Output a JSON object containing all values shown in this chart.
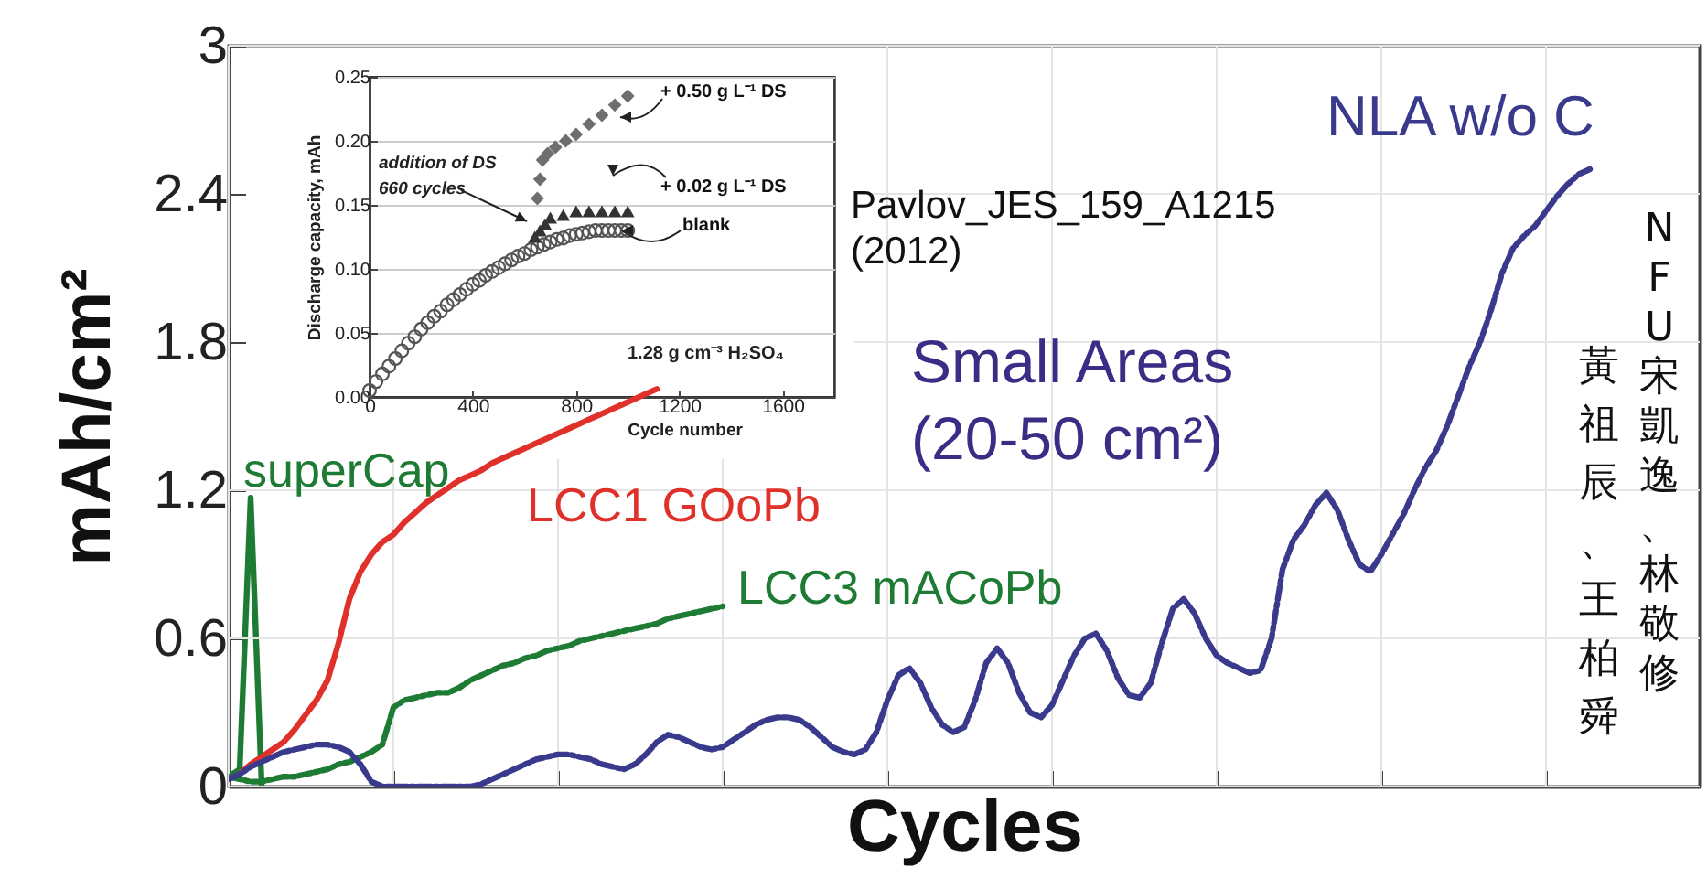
{
  "chart_data": [
    {
      "type": "line",
      "xlabel": "Cycles",
      "ylabel": "mAh/cm²",
      "grid": true,
      "categories": [
        null,
        null,
        null,
        null,
        null,
        null,
        null,
        null,
        null,
        null,
        null,
        null,
        null,
        null,
        null,
        null,
        null,
        null,
        null,
        null,
        null,
        null,
        null,
        null,
        null,
        null,
        null,
        null,
        null,
        null,
        null,
        null,
        null,
        null,
        null,
        null,
        null,
        null,
        null,
        null,
        null,
        null,
        null,
        null,
        null,
        null,
        null,
        null,
        null,
        null,
        null,
        null,
        null,
        null,
        null,
        null,
        null,
        null,
        null,
        null,
        null,
        null,
        null,
        null,
        null,
        null,
        null,
        null,
        null,
        null,
        null,
        null,
        null,
        null,
        null,
        null,
        null,
        null,
        null,
        null,
        null,
        null,
        null,
        null,
        null,
        null,
        null,
        null,
        null,
        null,
        null,
        null,
        null,
        null,
        null,
        null,
        null,
        null,
        null,
        null,
        null,
        null,
        null,
        null,
        null,
        null,
        null,
        null,
        null,
        null,
        null,
        null,
        null,
        null,
        null,
        null,
        null,
        null,
        null,
        null,
        null,
        null,
        null,
        null,
        null,
        null,
        null,
        null,
        null,
        null,
        null,
        null,
        null,
        null,
        null
      ],
      "ylim": [
        0,
        3
      ],
      "yticks": [
        0,
        0.6,
        1.2,
        1.8,
        2.4,
        3
      ],
      "tick_labels": "y",
      "annotations": [
        "Pavlov_JES_159_A1215\n(2012)",
        "Small Areas\n(20-50 cm²)",
        "NFU 宋凱逸、林敬修",
        "黃祖辰、王柏舜"
      ],
      "series": [
        {
          "name": "superCap",
          "color": "#1e7b34",
          "line_style": "solid",
          "values": [
            0.04,
            0.07,
            1.17,
            0.01,
            null,
            null,
            null,
            null,
            null,
            null,
            null,
            null,
            null,
            null,
            null,
            null,
            null,
            null,
            null,
            null,
            null,
            null,
            null,
            null,
            null,
            null,
            null,
            null,
            null,
            null,
            null,
            null,
            null,
            null,
            null,
            null,
            null,
            null,
            null,
            null,
            null,
            null,
            null,
            null,
            null,
            null,
            null,
            null,
            null,
            null,
            null,
            null,
            null,
            null,
            null,
            null,
            null,
            null,
            null,
            null,
            null,
            null,
            null,
            null,
            null,
            null,
            null,
            null,
            null,
            null,
            null,
            null,
            null,
            null,
            null,
            null,
            null,
            null,
            null,
            null,
            null,
            null,
            null,
            null,
            null,
            null,
            null,
            null,
            null,
            null,
            null,
            null,
            null,
            null,
            null,
            null,
            null,
            null,
            null,
            null,
            null,
            null,
            null,
            null,
            null,
            null,
            null,
            null,
            null,
            null,
            null,
            null,
            null,
            null,
            null,
            null,
            null,
            null,
            null,
            null,
            null,
            null,
            null,
            null,
            null,
            null,
            null,
            null,
            null,
            null,
            null,
            null,
            null,
            null,
            null
          ]
        },
        {
          "name": "LCC1 GOoPb",
          "color": "#e0302a",
          "line_style": "solid",
          "values": [
            0.03,
            0.05,
            0.09,
            0.12,
            0.15,
            0.18,
            0.23,
            0.29,
            0.35,
            0.43,
            0.58,
            0.76,
            0.87,
            0.94,
            0.99,
            1.02,
            1.07,
            1.11,
            1.15,
            1.18,
            1.21,
            1.24,
            1.26,
            1.28,
            1.31,
            1.33,
            1.35,
            1.37,
            1.39,
            1.41,
            1.43,
            1.45,
            1.47,
            1.49,
            1.51,
            1.53,
            1.55,
            1.57,
            1.59,
            1.61,
            null,
            null,
            null,
            null,
            null,
            null,
            null,
            null,
            null,
            null,
            null,
            null,
            null,
            null,
            null,
            null,
            null,
            null,
            null,
            null,
            null,
            null,
            null,
            null,
            null,
            null,
            null,
            null,
            null,
            null,
            null,
            null,
            null,
            null,
            null,
            null,
            null,
            null,
            null,
            null,
            null,
            null,
            null,
            null,
            null,
            null,
            null,
            null,
            null,
            null,
            null,
            null,
            null,
            null,
            null,
            null,
            null,
            null,
            null,
            null,
            null,
            null,
            null,
            null,
            null,
            null,
            null,
            null,
            null,
            null,
            null,
            null,
            null,
            null,
            null,
            null,
            null,
            null,
            null,
            null,
            null,
            null,
            null,
            null,
            null,
            null,
            null,
            null,
            null,
            null,
            null,
            null,
            null,
            null,
            null
          ]
        },
        {
          "name": "LCC3 mACoPb",
          "color": "#1e7b34",
          "line_style": "dashed",
          "values": [
            0.04,
            0.03,
            0.02,
            0.02,
            0.03,
            0.04,
            0.04,
            0.05,
            0.06,
            0.07,
            0.09,
            0.1,
            0.12,
            0.14,
            0.17,
            0.32,
            0.35,
            0.36,
            0.37,
            0.38,
            0.38,
            0.4,
            0.43,
            0.45,
            0.47,
            0.49,
            0.5,
            0.52,
            0.53,
            0.55,
            0.56,
            0.57,
            0.59,
            0.6,
            0.61,
            0.62,
            0.63,
            0.64,
            0.65,
            0.66,
            0.68,
            0.69,
            0.7,
            0.71,
            0.72,
            0.73,
            null,
            null,
            null,
            null,
            null,
            null,
            null,
            null,
            null,
            null,
            null,
            null,
            null,
            null,
            null,
            null,
            null,
            null,
            null,
            null,
            null,
            null,
            null,
            null,
            null,
            null,
            null,
            null,
            null,
            null,
            null,
            null,
            null,
            null,
            null,
            null,
            null,
            null,
            null,
            null,
            null,
            null,
            null,
            null,
            null,
            null,
            null,
            null,
            null,
            null,
            null,
            null,
            null,
            null,
            null,
            null,
            null,
            null,
            null,
            null,
            null,
            null,
            null,
            null,
            null,
            null,
            null,
            null,
            null,
            null,
            null,
            null,
            null,
            null,
            null,
            null,
            null,
            null,
            null,
            null,
            null,
            null,
            null,
            null,
            null,
            null,
            null,
            null,
            null
          ]
        },
        {
          "name": "NLA w/o C",
          "color": "#3a3a8c",
          "line_style": "dashed",
          "values": [
            0.03,
            0.05,
            0.08,
            0.1,
            0.12,
            0.14,
            0.15,
            0.16,
            0.17,
            0.17,
            0.16,
            0.14,
            0.09,
            0.02,
            0,
            0,
            0,
            0,
            0,
            0,
            0,
            0,
            0,
            0.01,
            0.03,
            0.05,
            0.07,
            0.09,
            0.11,
            0.12,
            0.13,
            0.13,
            0.12,
            0.11,
            0.09,
            0.08,
            0.07,
            0.09,
            0.13,
            0.18,
            0.21,
            0.2,
            0.18,
            0.16,
            0.15,
            0.16,
            0.19,
            0.22,
            0.25,
            0.27,
            0.28,
            0.28,
            0.27,
            0.24,
            0.2,
            0.16,
            0.14,
            0.13,
            0.15,
            0.22,
            0.35,
            0.45,
            0.48,
            0.42,
            0.32,
            0.25,
            0.22,
            0.24,
            0.35,
            0.5,
            0.56,
            0.5,
            0.38,
            0.3,
            0.28,
            0.33,
            0.43,
            0.53,
            0.6,
            0.62,
            0.55,
            0.44,
            0.37,
            0.36,
            0.42,
            0.58,
            0.72,
            0.76,
            0.7,
            0.6,
            0.53,
            0.5,
            0.48,
            0.46,
            0.47,
            0.6,
            0.88,
            1.0,
            1.06,
            1.14,
            1.19,
            1.12,
            1.0,
            0.9,
            0.87,
            0.94,
            1.02,
            1.1,
            1.2,
            1.29,
            1.36,
            1.46,
            1.58,
            1.7,
            1.8,
            1.93,
            2.08,
            2.18,
            2.23,
            2.27,
            2.33,
            2.39,
            2.44,
            2.48,
            2.5,
            null,
            null,
            null,
            null,
            null,
            null,
            null,
            null,
            null,
            null
          ]
        }
      ]
    },
    {
      "type": "scatter",
      "xlabel": "Cycle number",
      "ylabel": "Discharge capacity, mAh",
      "grid": "y",
      "xlim": [
        0,
        1800
      ],
      "xticks": [
        0,
        400,
        800,
        1200,
        1600
      ],
      "ylim": [
        0,
        0.25
      ],
      "yticks": [
        {
          "value": 0,
          "label": "0.00"
        },
        0.05,
        {
          "value": 0.1,
          "label": "0.10"
        },
        0.15,
        {
          "value": 0.2,
          "label": "0.20"
        },
        0.25
      ],
      "annotations": [
        "addition of DS\n660 cycles",
        "1.28 g cm⁻³ H₂SO₄"
      ],
      "series": [
        {
          "name": "blank",
          "color": "#555555",
          "marker": "circle",
          "x": [
            0,
            25,
            50,
            75,
            100,
            125,
            150,
            175,
            200,
            225,
            250,
            275,
            300,
            325,
            350,
            375,
            400,
            425,
            450,
            475,
            500,
            525,
            550,
            575,
            600,
            625,
            650,
            675,
            700,
            725,
            750,
            775,
            800,
            825,
            850,
            875,
            900,
            925,
            950,
            975,
            1000
          ],
          "values": [
            0.005,
            0.012,
            0.018,
            0.024,
            0.03,
            0.036,
            0.042,
            0.047,
            0.053,
            0.058,
            0.063,
            0.067,
            0.072,
            0.076,
            0.08,
            0.084,
            0.088,
            0.091,
            0.095,
            0.098,
            0.101,
            0.104,
            0.107,
            0.11,
            0.112,
            0.115,
            0.117,
            0.119,
            0.121,
            0.123,
            0.124,
            0.126,
            0.127,
            0.128,
            0.129,
            0.13,
            0.13,
            0.13,
            0.13,
            0.13,
            0.13
          ]
        },
        {
          "name": "+ 0.02 g L⁻¹ DS",
          "color": "#333333",
          "marker": "triangle",
          "x": [
            640,
            660,
            680,
            700,
            750,
            800,
            850,
            900,
            950,
            1000
          ],
          "values": [
            0.125,
            0.13,
            0.135,
            0.14,
            0.142,
            0.145,
            0.145,
            0.145,
            0.145,
            0.145
          ]
        },
        {
          "name": "+ 0.50 g L⁻¹ DS",
          "color": "#6e6e6e",
          "marker": "diamond",
          "x": [
            650,
            660,
            670,
            690,
            720,
            760,
            800,
            850,
            900,
            950,
            1000
          ],
          "values": [
            0.155,
            0.17,
            0.185,
            0.19,
            0.195,
            0.2,
            0.205,
            0.213,
            0.22,
            0.228,
            0.235
          ]
        }
      ]
    }
  ]
}
